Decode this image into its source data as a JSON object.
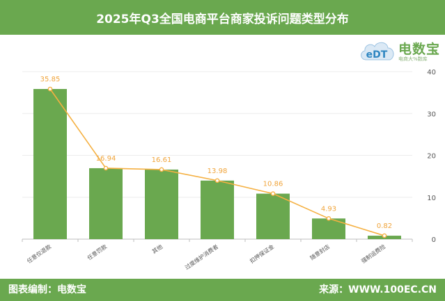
{
  "header": {
    "title": "2025年Q3全国电商平台商家投诉问题类型分布"
  },
  "logo": {
    "brand": "电数宝",
    "mark_text": "eDT",
    "slogan": "电商大%数库"
  },
  "footer": {
    "left": "图表编制：电数宝",
    "right": "来源：WWW.100EC.CN"
  },
  "colors": {
    "header_bg": "#6aa84f",
    "bar": "#6aa84f",
    "line": "#f5b041",
    "label": "#f0a43a"
  },
  "chart_data": {
    "type": "bar",
    "categories": [
      "任意仅退款",
      "任意罚款",
      "其他",
      "过度维护消费者",
      "扣押保证金",
      "随意封店",
      "强制运费险"
    ],
    "values": [
      35.85,
      16.94,
      16.61,
      13.98,
      10.86,
      4.93,
      0.82
    ],
    "overlay_line": true,
    "y_ticks": [
      0,
      10,
      20,
      30,
      40
    ],
    "ylim": [
      0,
      40
    ],
    "y_axis_side": "right",
    "grid": true,
    "title": "",
    "xlabel": "",
    "ylabel": ""
  }
}
